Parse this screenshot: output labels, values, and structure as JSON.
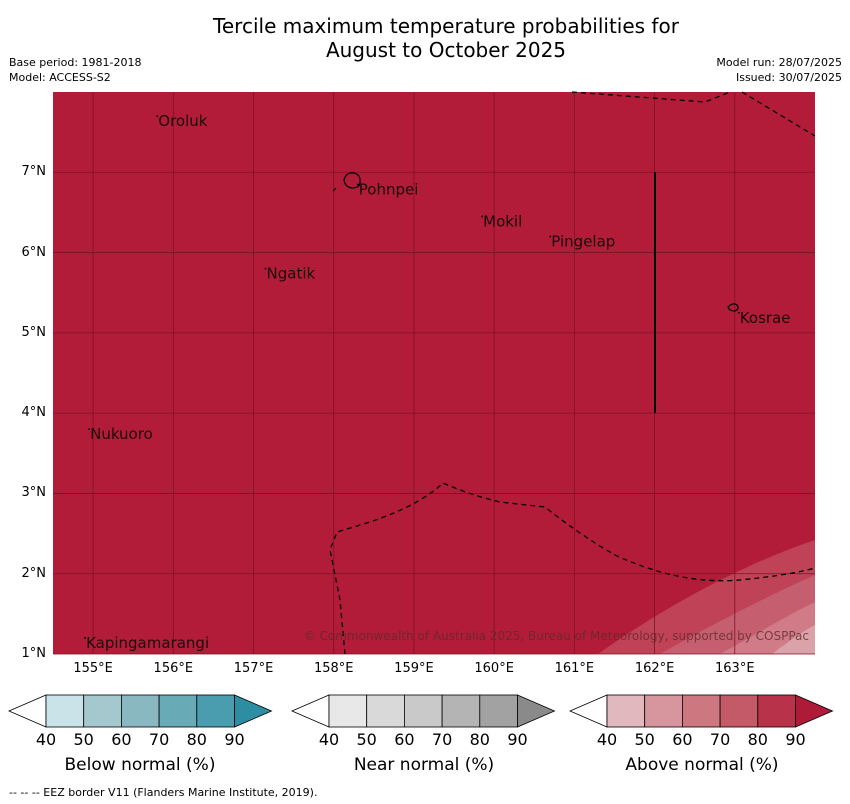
{
  "title_line1": "Tercile maximum temperature probabilities for",
  "title_line2": "August to October 2025",
  "meta_left": {
    "base_period": "Base period: 1981-2018",
    "model": "Model: ACCESS-S2"
  },
  "meta_right": {
    "model_run": "Model run: 28/07/2025",
    "issued": "Issued: 30/07/2025"
  },
  "map": {
    "fill_color": "#b31c38",
    "lon_range": [
      154.5,
      164.0
    ],
    "lat_range": [
      1.0,
      8.0
    ],
    "lat_ticks": [
      "7°N",
      "6°N",
      "5°N",
      "4°N",
      "3°N",
      "2°N",
      "1°N"
    ],
    "lon_ticks": [
      "155°E",
      "156°E",
      "157°E",
      "158°E",
      "159°E",
      "160°E",
      "161°E",
      "162°E",
      "163°E"
    ],
    "places": [
      {
        "name": "Oroluk",
        "lon": 155.8,
        "lat": 7.65
      },
      {
        "name": "Pohnpei",
        "lon": 158.3,
        "lat": 6.8
      },
      {
        "name": "Mokil",
        "lon": 159.85,
        "lat": 6.4
      },
      {
        "name": "Pingelap",
        "lon": 160.7,
        "lat": 6.15
      },
      {
        "name": "Ngatik",
        "lon": 157.15,
        "lat": 5.75
      },
      {
        "name": "Kosrae",
        "lon": 163.05,
        "lat": 5.2
      },
      {
        "name": "Nukuoro",
        "lon": 154.95,
        "lat": 3.75
      },
      {
        "name": "Kapingamarangi",
        "lon": 154.9,
        "lat": 1.15
      }
    ],
    "copyright": "© Commonwealth of Australia 2025, Bureau of Meteorology, supported by COSPPac"
  },
  "colorbars": [
    {
      "title": "Below normal (%)",
      "colors": [
        "#ffffff",
        "#c9e3e8",
        "#a5c8ce",
        "#8ab8c1",
        "#68aab6",
        "#4a9caf",
        "#2d8ea3"
      ]
    },
    {
      "title": "Near normal (%)",
      "colors": [
        "#ffffff",
        "#e8e8e8",
        "#d9d9d9",
        "#c9c9c9",
        "#b4b4b4",
        "#a2a2a2",
        "#8a8a8a"
      ]
    },
    {
      "title": "Above normal (%)",
      "colors": [
        "#ffffff",
        "#e2b8bf",
        "#d7969e",
        "#cd7780",
        "#c45967",
        "#b8324a",
        "#ae1b39"
      ]
    }
  ],
  "colorbar_ticks": [
    "40",
    "50",
    "60",
    "70",
    "80",
    "90"
  ],
  "footer": "--  --  -- EEZ border V11 (Flanders Marine Institute, 2019)."
}
